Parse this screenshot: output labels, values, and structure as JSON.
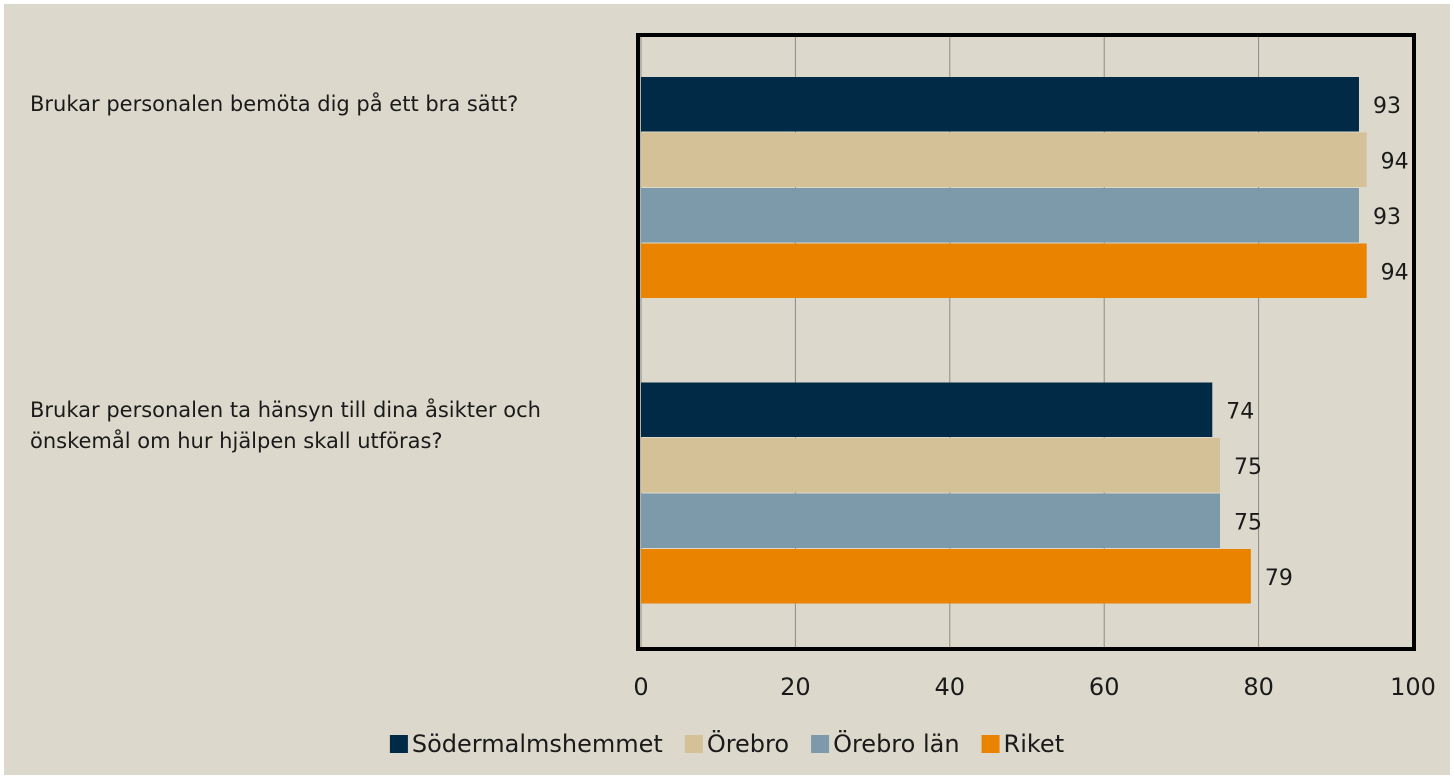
{
  "chart_data": {
    "type": "barh",
    "categories": [
      "Brukar personalen bemöta dig på ett bra sätt?",
      "Brukar personalen ta hänsyn till dina åsikter och önskemål om hur hjälpen skall utföras?"
    ],
    "series": [
      {
        "name": "Södermalmshemmet",
        "color": "#002a45",
        "values": [
          93,
          74
        ]
      },
      {
        "name": "Örebro",
        "color": "#d4c197",
        "values": [
          94,
          75
        ]
      },
      {
        "name": "Örebro län",
        "color": "#7d9aab",
        "values": [
          93,
          75
        ]
      },
      {
        "name": "Riket",
        "color": "#e98300",
        "values": [
          94,
          79
        ]
      }
    ],
    "xlim": [
      0,
      100
    ],
    "xticks": [
      0,
      20,
      40,
      60,
      80,
      100
    ],
    "grid": true,
    "legend": "bottom"
  }
}
